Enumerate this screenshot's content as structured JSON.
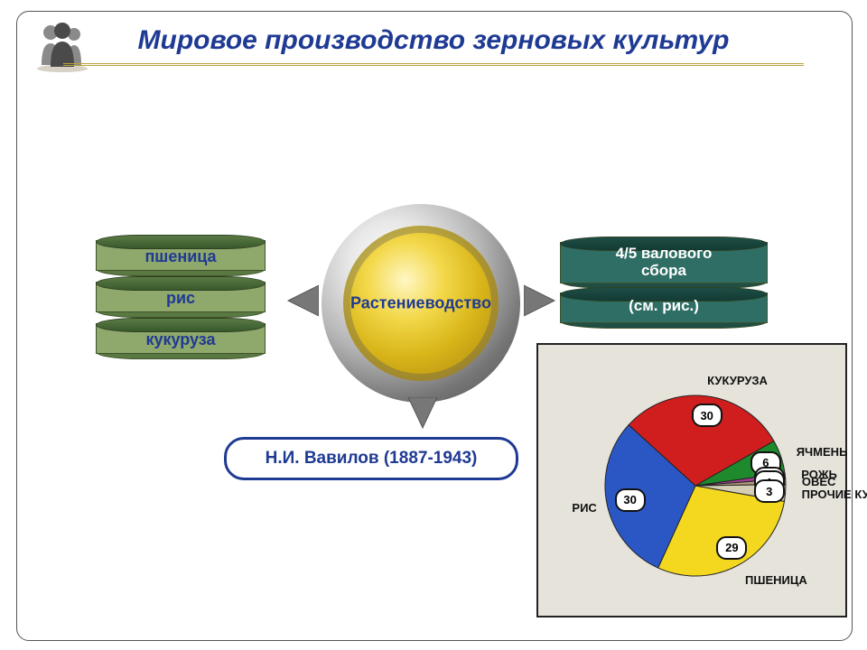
{
  "title": "Мировое производство зерновых культур",
  "title_color": "#1f3a93",
  "center": {
    "label": "Растениеводство",
    "text_color": "#1f3a93"
  },
  "left_disks": {
    "fill": "#8fa86c",
    "top": "#4f7139",
    "text_color": "#1f3a93",
    "items": [
      "пшеница",
      "рис",
      "кукуруза"
    ]
  },
  "right_disks": {
    "fill": "#2f6e64",
    "top": "#163f38",
    "text_color": "#ffffff",
    "line1": "4/5 валового",
    "line2": "сбора",
    "line3": "(см. рис.)"
  },
  "bottom_pill": "Н.И. Вавилов (1887-1943)",
  "pie": {
    "background": "#e5e3da",
    "slices": [
      {
        "label": "ПШЕНИЦА",
        "value": 29,
        "color": "#f4d820"
      },
      {
        "label": "РИС",
        "value": 30,
        "color": "#2b57c5"
      },
      {
        "label": "КУКУРУЗА",
        "value": 30,
        "color": "#d01e1e"
      },
      {
        "label": "ЯЧМЕНЬ",
        "value": 6,
        "color": "#1f8a2d"
      },
      {
        "label": "РОЖЬ",
        "value": 1,
        "color": "#a43f98"
      },
      {
        "label": "ОВЕС",
        "value": 1,
        "color": "#b39a7c"
      },
      {
        "label": "ПРОЧИЕ КУЛЬТУРЫ",
        "value": 3,
        "color": "#d6ceb4"
      }
    ],
    "start_angle_deg": 10,
    "label_font_size": 13,
    "bubble_border": "#111111"
  },
  "arrows": {
    "fill": "#6d6d6d"
  },
  "frame_radius": 14
}
